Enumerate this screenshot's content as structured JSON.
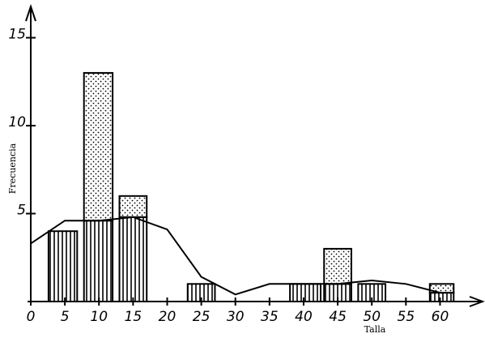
{
  "chart_data": {
    "type": "stacked_histogram_line",
    "xlabel": "Talla",
    "ylabel": "Frecuencia",
    "bar_edges": [
      [
        2.6,
        6.8
      ],
      [
        7.8,
        12
      ],
      [
        13,
        17
      ],
      [
        23,
        27
      ],
      [
        38,
        42.5
      ],
      [
        43,
        47
      ],
      [
        48,
        52
      ],
      [
        58.5,
        62
      ]
    ],
    "series": [
      {
        "pattern": "stripes",
        "color": "#000000",
        "values": [
          4,
          4.6,
          4.8,
          1,
          1,
          1,
          1,
          0.5
        ]
      },
      {
        "pattern": "dots",
        "color": "#000000",
        "values": [
          0,
          8.4,
          1.2,
          0,
          0,
          2,
          0,
          0.5
        ]
      }
    ],
    "line": {
      "color": "#000000",
      "x": [
        0,
        5,
        10,
        15,
        20,
        25,
        30,
        35,
        40,
        45,
        50,
        55,
        60
      ],
      "values": [
        3.3,
        4.6,
        4.6,
        4.8,
        4.1,
        1.4,
        0.4,
        1,
        1,
        1,
        1.2,
        1,
        0.5
      ]
    },
    "xlim": [
      0,
      66
    ],
    "ylim": [
      0,
      16.5
    ],
    "xticks": [
      0,
      5,
      10,
      15,
      20,
      25,
      30,
      35,
      40,
      45,
      50,
      55,
      60
    ],
    "yticks": [
      5,
      10,
      15
    ]
  }
}
